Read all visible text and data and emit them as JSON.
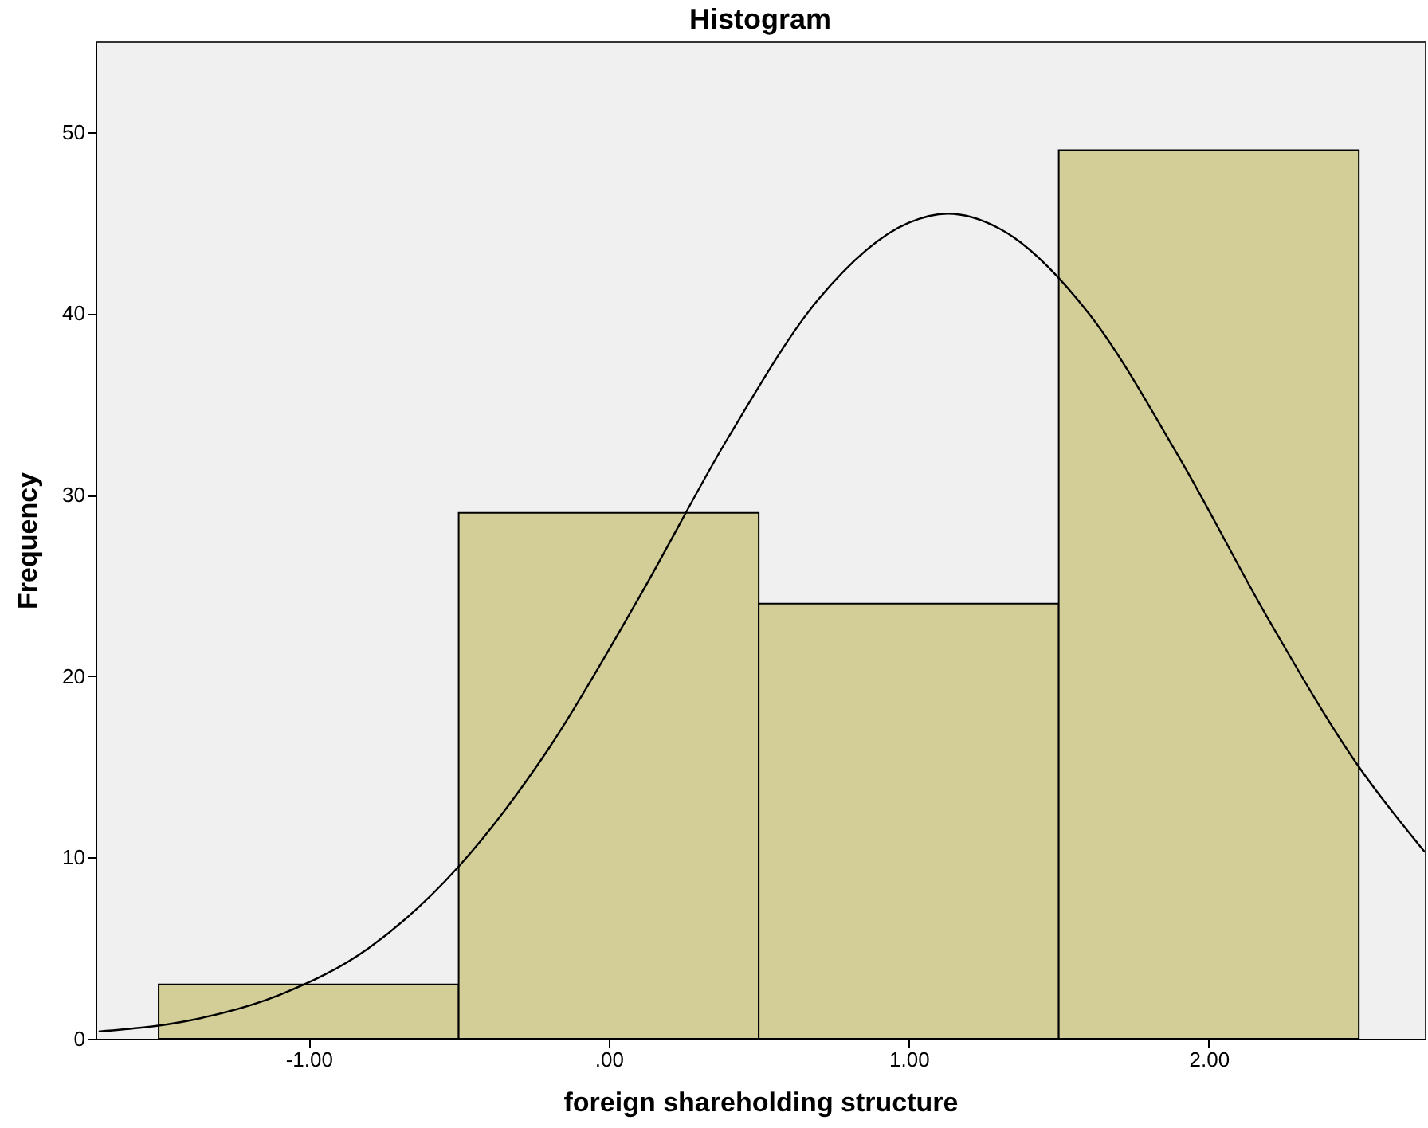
{
  "chart_data": {
    "type": "histogram",
    "title": "Histogram",
    "xlabel": "foreign shareholding structure",
    "ylabel": "Frequency",
    "bins": [
      -1.5,
      -0.5,
      0.5,
      1.5,
      2.5
    ],
    "values": [
      3,
      29,
      24,
      49
    ],
    "color": "#d3ce97",
    "series": [
      {
        "type": "line",
        "color": "#000000",
        "x": [
          -1.7,
          -1.4,
          -1.1,
          -0.8,
          -0.5,
          -0.2,
          0.1,
          0.4,
          0.7,
          1.0,
          1.13,
          1.3,
          1.6,
          1.9,
          2.2,
          2.5,
          2.72
        ],
        "values": [
          0.4,
          1.0,
          2.4,
          5.0,
          9.5,
          16.0,
          24.3,
          33.2,
          40.8,
          45.0,
          45.5,
          44.7,
          40.0,
          32.1,
          23.1,
          15.0,
          10.3
        ]
      }
    ],
    "xlim": [
      -1.71,
      2.72
    ],
    "xticks": [
      {
        "value": -1,
        "label": "-1.00"
      },
      {
        "value": 0,
        "label": ".00"
      },
      {
        "value": 1,
        "label": "1.00"
      },
      {
        "value": 2,
        "label": "2.00"
      }
    ],
    "ylim": [
      0,
      55
    ],
    "yticks": [
      0,
      10,
      20,
      30,
      40,
      50
    ],
    "grid": false
  }
}
